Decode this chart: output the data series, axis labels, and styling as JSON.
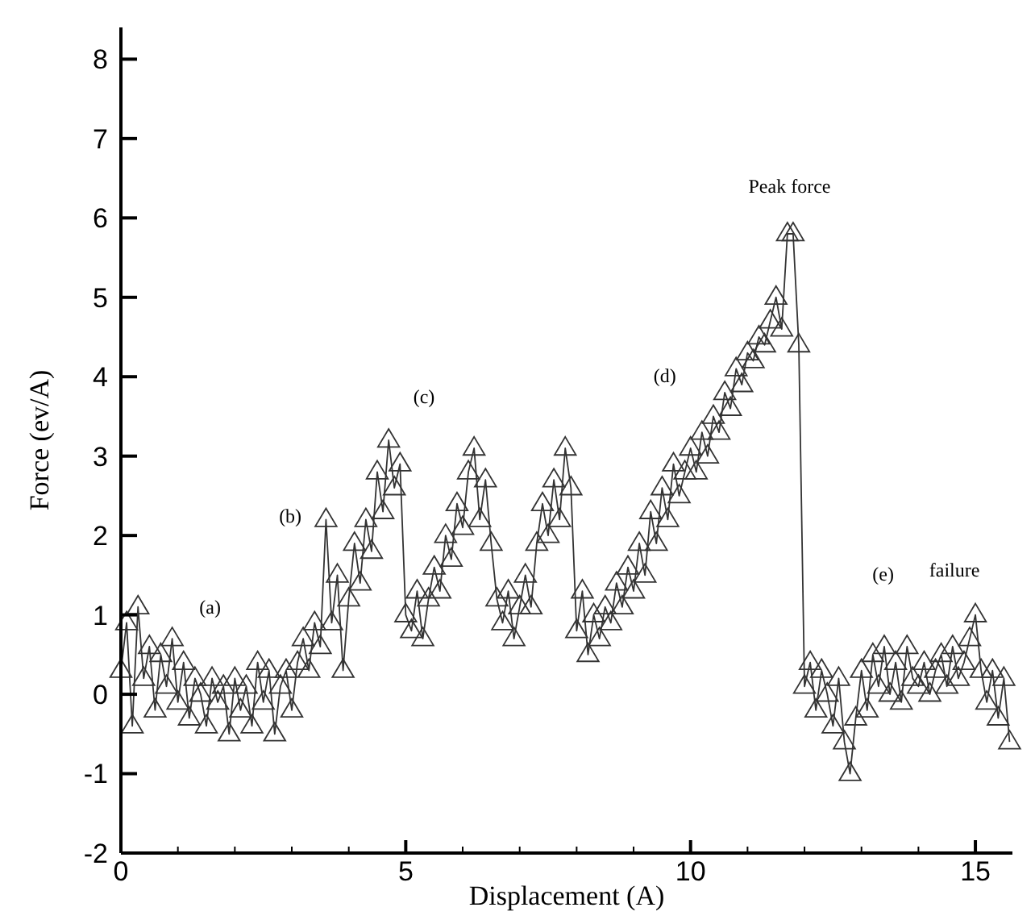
{
  "chart_data": {
    "type": "line",
    "xlabel": "Displacement (A)",
    "ylabel": "Force (ev/A)",
    "marker": "triangle",
    "line_style": "solid",
    "grid": false,
    "xlim": [
      0,
      15.65
    ],
    "ylim": [
      -2,
      8.4
    ],
    "xticks": [
      0,
      {
        "value": 1,
        "label": null
      },
      {
        "value": 2,
        "label": null
      },
      {
        "value": 3,
        "label": null
      },
      {
        "value": 4,
        "label": null
      },
      5,
      {
        "value": 6,
        "label": null
      },
      {
        "value": 7,
        "label": null
      },
      {
        "value": 8,
        "label": null
      },
      {
        "value": 9,
        "label": null
      },
      10,
      {
        "value": 11,
        "label": null
      },
      {
        "value": 12,
        "label": null
      },
      {
        "value": 13,
        "label": null
      },
      {
        "value": 14,
        "label": null
      },
      15
    ],
    "yticks": [
      -2,
      -1,
      0,
      1,
      2,
      3,
      4,
      5,
      6,
      7,
      8
    ],
    "series": [
      {
        "color": "#333333",
        "x": [
          0,
          0.1,
          0.2,
          0.3,
          0.4,
          0.5,
          0.6,
          0.7,
          0.8,
          0.9,
          1.0,
          1.1,
          1.2,
          1.3,
          1.4,
          1.5,
          1.6,
          1.7,
          1.8,
          1.9,
          2.0,
          2.1,
          2.2,
          2.3,
          2.4,
          2.5,
          2.6,
          2.7,
          2.8,
          2.9,
          3.0,
          3.1,
          3.2,
          3.3,
          3.4,
          3.5,
          3.6,
          3.7,
          3.8,
          3.9,
          4.0,
          4.1,
          4.2,
          4.3,
          4.4,
          4.5,
          4.6,
          4.7,
          4.8,
          4.9,
          5.0,
          5.1,
          5.2,
          5.3,
          5.4,
          5.5,
          5.6,
          5.7,
          5.8,
          5.9,
          6.0,
          6.1,
          6.2,
          6.3,
          6.4,
          6.5,
          6.6,
          6.7,
          6.8,
          6.9,
          7.0,
          7.1,
          7.2,
          7.3,
          7.4,
          7.5,
          7.6,
          7.7,
          7.8,
          7.9,
          8.0,
          8.1,
          8.2,
          8.3,
          8.4,
          8.5,
          8.6,
          8.7,
          8.8,
          8.9,
          9.0,
          9.1,
          9.2,
          9.3,
          9.4,
          9.5,
          9.6,
          9.7,
          9.8,
          9.9,
          10.0,
          10.1,
          10.2,
          10.3,
          10.4,
          10.5,
          10.6,
          10.7,
          10.8,
          10.9,
          11.0,
          11.1,
          11.2,
          11.3,
          11.4,
          11.5,
          11.6,
          11.7,
          11.8,
          11.9,
          12.0,
          12.1,
          12.2,
          12.3,
          12.4,
          12.5,
          12.6,
          12.7,
          12.8,
          12.9,
          13.0,
          13.1,
          13.2,
          13.3,
          13.4,
          13.5,
          13.6,
          13.7,
          13.8,
          13.9,
          14.0,
          14.1,
          14.2,
          14.3,
          14.4,
          14.5,
          14.6,
          14.7,
          14.8,
          14.9,
          15.0,
          15.1,
          15.2,
          15.3,
          15.4,
          15.5,
          15.6
        ],
        "values": [
          0.3,
          0.9,
          -0.4,
          1.1,
          0.2,
          0.6,
          -0.2,
          0.5,
          0.1,
          0.7,
          -0.1,
          0.4,
          -0.3,
          0.2,
          0,
          -0.4,
          0.2,
          -0.1,
          0.1,
          -0.5,
          0.2,
          -0.2,
          0.1,
          -0.4,
          0.4,
          -0.1,
          0.3,
          -0.5,
          0.1,
          0.3,
          -0.2,
          0.4,
          0.7,
          0.3,
          0.9,
          0.6,
          2.2,
          0.9,
          1.5,
          0.3,
          1.2,
          1.9,
          1.4,
          2.2,
          1.8,
          2.8,
          2.3,
          3.2,
          2.6,
          2.9,
          1.0,
          0.8,
          1.3,
          0.7,
          1.2,
          1.6,
          1.3,
          2.0,
          1.7,
          2.4,
          2.1,
          2.8,
          3.1,
          2.2,
          2.7,
          1.9,
          1.2,
          0.9,
          1.3,
          0.7,
          1.1,
          1.5,
          1.1,
          1.9,
          2.4,
          2.0,
          2.7,
          2.2,
          3.1,
          2.6,
          0.8,
          1.3,
          0.5,
          1.0,
          0.7,
          1.1,
          0.9,
          1.4,
          1.1,
          1.6,
          1.3,
          1.9,
          1.5,
          2.3,
          1.9,
          2.6,
          2.2,
          2.9,
          2.5,
          2.8,
          3.1,
          2.8,
          3.3,
          3.0,
          3.5,
          3.3,
          3.8,
          3.6,
          4.1,
          3.9,
          4.3,
          4.2,
          4.5,
          4.4,
          4.7,
          5.0,
          4.6,
          5.8,
          5.8,
          4.4,
          0.1,
          0.4,
          -0.2,
          0.3,
          0,
          -0.4,
          0.2,
          -0.6,
          -1.0,
          -0.3,
          0.3,
          -0.2,
          0.5,
          0.1,
          0.6,
          0,
          0.4,
          -0.1,
          0.6,
          0.2,
          0.1,
          0.4,
          0,
          0.3,
          0.5,
          0.1,
          0.6,
          0.2,
          0.4,
          0.7,
          1.0,
          0.3,
          -0.1,
          0.3,
          -0.3,
          0.2,
          -0.6
        ]
      }
    ],
    "annotations": [
      "(a)",
      "(b)",
      "(c)",
      "(d)",
      "Peak force",
      "(e)",
      "failure"
    ]
  }
}
